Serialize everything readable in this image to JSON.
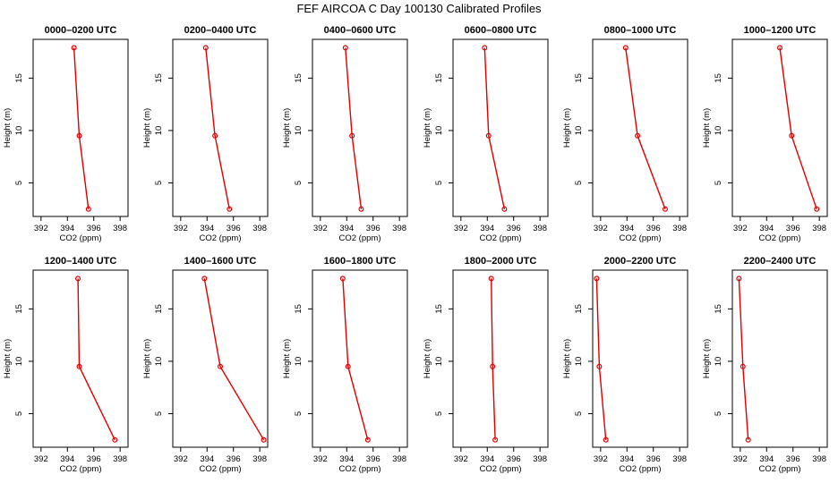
{
  "title": "FEF AIRCOA C  Day 100130  Calibrated Profiles",
  "colors": {
    "series": "#dd0000",
    "axis": "#000000"
  },
  "chart_data": [
    {
      "type": "line",
      "title": "0000–0200 UTC",
      "xlabel": "CO2 (ppm)",
      "ylabel": "Height (m)",
      "xlim": [
        391.4,
        398.6
      ],
      "ylim": [
        1.8,
        18.7
      ],
      "xticks": [
        392,
        394,
        396,
        398
      ],
      "yticks": [
        5,
        10,
        15
      ],
      "series": [
        {
          "x": [
            395.6,
            394.9,
            394.5
          ],
          "y": [
            2.5,
            9.5,
            17.9
          ]
        }
      ]
    },
    {
      "type": "line",
      "title": "0200–0400 UTC",
      "xlabel": "CO2 (ppm)",
      "ylabel": "Height (m)",
      "xlim": [
        391.4,
        398.6
      ],
      "ylim": [
        1.8,
        18.7
      ],
      "xticks": [
        392,
        394,
        396,
        398
      ],
      "yticks": [
        5,
        10,
        15
      ],
      "series": [
        {
          "x": [
            395.7,
            394.6,
            393.9
          ],
          "y": [
            2.5,
            9.5,
            17.9
          ]
        }
      ]
    },
    {
      "type": "line",
      "title": "0400–0600 UTC",
      "xlabel": "CO2 (ppm)",
      "ylabel": "Height (m)",
      "xlim": [
        391.4,
        398.6
      ],
      "ylim": [
        1.8,
        18.7
      ],
      "xticks": [
        392,
        394,
        396,
        398
      ],
      "yticks": [
        5,
        10,
        15
      ],
      "series": [
        {
          "x": [
            395.1,
            394.4,
            393.9
          ],
          "y": [
            2.5,
            9.5,
            17.9
          ]
        }
      ]
    },
    {
      "type": "line",
      "title": "0600–0800 UTC",
      "xlabel": "CO2 (ppm)",
      "ylabel": "Height (m)",
      "xlim": [
        391.4,
        398.6
      ],
      "ylim": [
        1.8,
        18.7
      ],
      "xticks": [
        392,
        394,
        396,
        398
      ],
      "yticks": [
        5,
        10,
        15
      ],
      "series": [
        {
          "x": [
            395.3,
            394.1,
            393.8
          ],
          "y": [
            2.5,
            9.5,
            17.9
          ]
        }
      ]
    },
    {
      "type": "line",
      "title": "0800–1000 UTC",
      "xlabel": "CO2 (ppm)",
      "ylabel": "Height (m)",
      "xlim": [
        391.4,
        398.6
      ],
      "ylim": [
        1.8,
        18.7
      ],
      "xticks": [
        392,
        394,
        396,
        398
      ],
      "yticks": [
        5,
        10,
        15
      ],
      "series": [
        {
          "x": [
            396.9,
            394.8,
            393.9
          ],
          "y": [
            2.5,
            9.5,
            17.9
          ]
        }
      ]
    },
    {
      "type": "line",
      "title": "1000–1200 UTC",
      "xlabel": "CO2 (ppm)",
      "ylabel": "Height (m)",
      "xlim": [
        391.4,
        398.6
      ],
      "ylim": [
        1.8,
        18.7
      ],
      "xticks": [
        392,
        394,
        396,
        398
      ],
      "yticks": [
        5,
        10,
        15
      ],
      "series": [
        {
          "x": [
            397.8,
            395.9,
            395.0
          ],
          "y": [
            2.5,
            9.5,
            17.9
          ]
        }
      ]
    },
    {
      "type": "line",
      "title": "1200–1400 UTC",
      "xlabel": "CO2 (ppm)",
      "ylabel": "Height (m)",
      "xlim": [
        391.4,
        398.6
      ],
      "ylim": [
        1.8,
        18.7
      ],
      "xticks": [
        392,
        394,
        396,
        398
      ],
      "yticks": [
        5,
        10,
        15
      ],
      "series": [
        {
          "x": [
            397.6,
            394.9,
            394.8
          ],
          "y": [
            2.5,
            9.5,
            17.9
          ]
        }
      ]
    },
    {
      "type": "line",
      "title": "1400–1600 UTC",
      "xlabel": "CO2 (ppm)",
      "ylabel": "Height (m)",
      "xlim": [
        391.4,
        398.6
      ],
      "ylim": [
        1.8,
        18.7
      ],
      "xticks": [
        392,
        394,
        396,
        398
      ],
      "yticks": [
        5,
        10,
        15
      ],
      "series": [
        {
          "x": [
            398.3,
            395.0,
            393.8
          ],
          "y": [
            2.5,
            9.5,
            17.9
          ]
        }
      ]
    },
    {
      "type": "line",
      "title": "1600–1800 UTC",
      "xlabel": "CO2 (ppm)",
      "ylabel": "Height (m)",
      "xlim": [
        391.4,
        398.6
      ],
      "ylim": [
        1.8,
        18.7
      ],
      "xticks": [
        392,
        394,
        396,
        398
      ],
      "yticks": [
        5,
        10,
        15
      ],
      "series": [
        {
          "x": [
            395.6,
            394.1,
            393.7
          ],
          "y": [
            2.5,
            9.5,
            17.9
          ]
        }
      ]
    },
    {
      "type": "line",
      "title": "1800–2000 UTC",
      "xlabel": "CO2 (ppm)",
      "ylabel": "Height (m)",
      "xlim": [
        391.4,
        398.6
      ],
      "ylim": [
        1.8,
        18.7
      ],
      "xticks": [
        392,
        394,
        396,
        398
      ],
      "yticks": [
        5,
        10,
        15
      ],
      "series": [
        {
          "x": [
            394.6,
            394.4,
            394.3
          ],
          "y": [
            2.5,
            9.5,
            17.9
          ]
        }
      ]
    },
    {
      "type": "line",
      "title": "2000–2200 UTC",
      "xlabel": "CO2 (ppm)",
      "ylabel": "Height (m)",
      "xlim": [
        391.4,
        398.6
      ],
      "ylim": [
        1.8,
        18.7
      ],
      "xticks": [
        392,
        394,
        396,
        398
      ],
      "yticks": [
        5,
        10,
        15
      ],
      "series": [
        {
          "x": [
            392.4,
            391.9,
            391.7
          ],
          "y": [
            2.5,
            9.5,
            17.9
          ]
        }
      ]
    },
    {
      "type": "line",
      "title": "2200–2400 UTC",
      "xlabel": "CO2 (ppm)",
      "ylabel": "Height (m)",
      "xlim": [
        391.4,
        398.6
      ],
      "ylim": [
        1.8,
        18.7
      ],
      "xticks": [
        392,
        394,
        396,
        398
      ],
      "yticks": [
        5,
        10,
        15
      ],
      "series": [
        {
          "x": [
            392.6,
            392.2,
            391.9
          ],
          "y": [
            2.5,
            9.5,
            17.9
          ]
        }
      ]
    }
  ]
}
